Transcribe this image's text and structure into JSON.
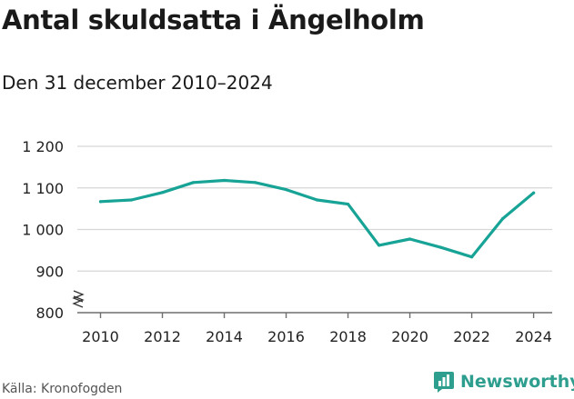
{
  "header": {
    "title": "Antal skuldsatta i Ängelholm",
    "subtitle": "Den 31 december 2010–2024"
  },
  "footer": {
    "source": "Källa: Kronofogden",
    "brand": "Newsworthy"
  },
  "colors": {
    "line": "#17a396",
    "grid": "#d6d6d6",
    "brand": "#2e9e8f"
  },
  "icons": {
    "brand_logo": "newsworthy-logo-icon",
    "axis_break": "axis-break-icon"
  },
  "chart_data": {
    "type": "line",
    "title": "Antal skuldsatta i Ängelholm",
    "subtitle": "Den 31 december 2010–2024",
    "xlabel": "",
    "ylabel": "",
    "x": [
      2010,
      2011,
      2012,
      2013,
      2014,
      2015,
      2016,
      2017,
      2018,
      2019,
      2020,
      2021,
      2022,
      2023,
      2024
    ],
    "values": [
      1067,
      1071,
      1089,
      1113,
      1118,
      1113,
      1096,
      1071,
      1061,
      962,
      977,
      957,
      934,
      1026,
      1088
    ],
    "ylim": [
      800,
      1200
    ],
    "y_axis_break": true,
    "y_ticks": [
      800,
      900,
      1000,
      1100,
      1200
    ],
    "y_tick_labels": [
      "800",
      "900",
      "1 000",
      "1 100",
      "1 200"
    ],
    "x_ticks": [
      2010,
      2012,
      2014,
      2016,
      2018,
      2020,
      2022,
      2024
    ],
    "x_tick_labels": [
      "2010",
      "2012",
      "2014",
      "2016",
      "2018",
      "2020",
      "2022",
      "2024"
    ],
    "grid": true,
    "legend": "none"
  }
}
